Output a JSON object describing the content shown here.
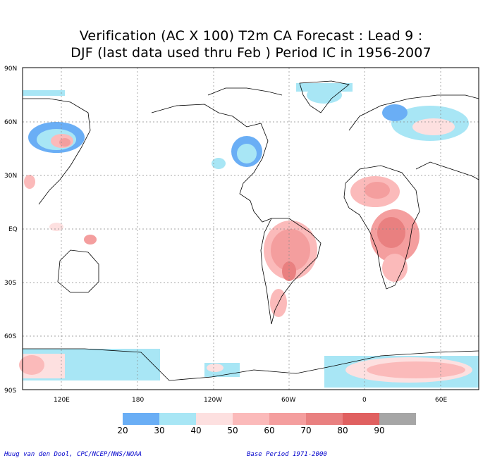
{
  "title_line1": "Verification (AC X 100) T2m CA Forecast : Lead 9 :",
  "title_line2": "DJF (last data used thru Feb ) Period IC in 1956-2007",
  "lat_labels": [
    "90N",
    "60N",
    "30N",
    "EQ",
    "30S",
    "60S",
    "90S"
  ],
  "lon_labels": [
    "120E",
    "180",
    "120W",
    "60W",
    "0",
    "60E"
  ],
  "legend": {
    "colors": [
      "#6aaef5",
      "#a8e6f5",
      "#fde0e0",
      "#fbbaba",
      "#f49e9e",
      "#e98080",
      "#e06060",
      "#a6a6a6"
    ],
    "labels": [
      "20",
      "30",
      "40",
      "50",
      "60",
      "70",
      "80",
      "90"
    ]
  },
  "credit": "Huug van den Dool, CPC/NCEP/NWS/NOAA",
  "base_period": "Base Period 1971-2000"
}
